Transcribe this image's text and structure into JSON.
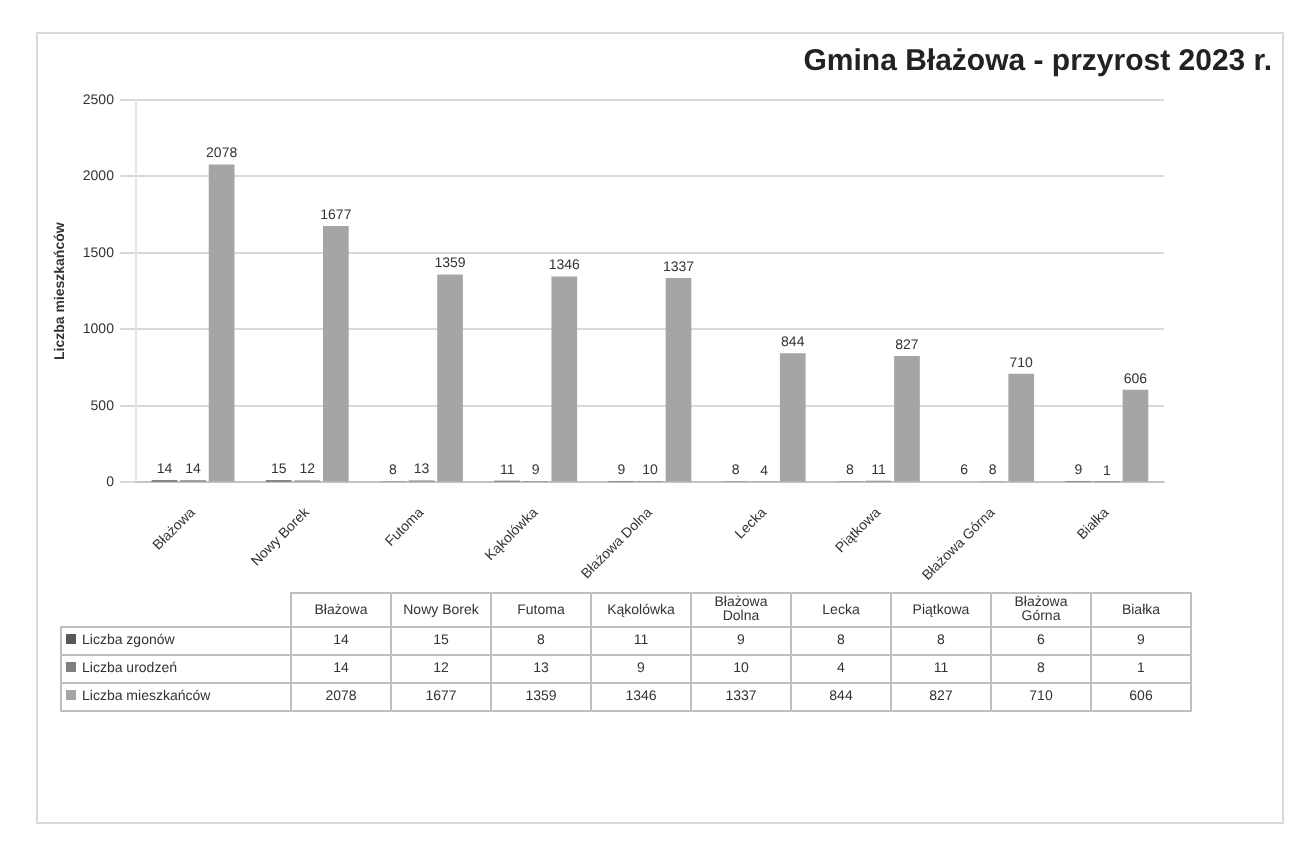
{
  "chart_data": [
    {
      "type": "bar",
      "title": "Gmina Błażowa - przyrost 2023 r.",
      "ylabel": "Liczba mieszkańców",
      "categories": [
        "Błażowa",
        "Nowy Borek",
        "Futoma",
        "Kąkolówka",
        "Błażowa Dolna",
        "Lecka",
        "Piątkowa",
        "Błażowa Górna",
        "Białka"
      ],
      "series": [
        {
          "color": "#595959",
          "values": [
            14,
            15,
            8,
            11,
            9,
            8,
            8,
            6,
            9
          ]
        },
        {
          "color": "#7f7f7f",
          "values": [
            14,
            12,
            13,
            9,
            10,
            4,
            11,
            8,
            1
          ]
        },
        {
          "color": "#a5a5a5",
          "values": [
            2078,
            1677,
            1359,
            1346,
            1337,
            844,
            827,
            710,
            606
          ]
        }
      ],
      "ylim": [
        0,
        2500
      ],
      "yticks": [
        0,
        500,
        1000,
        1500,
        2000,
        2500
      ],
      "grid": "y",
      "data_labels": true
    },
    {
      "type": "other",
      "categories": [
        "Błażowa",
        "Nowy Borek",
        "Futoma",
        "Kąkolówka",
        "Błażowa Dolna",
        "Lecka",
        "Piątkowa",
        "Błażowa Górna",
        "Białka"
      ],
      "series": [
        {
          "name": "Liczba zgonów",
          "color": "#595959",
          "values": [
            14,
            15,
            8,
            11,
            9,
            8,
            8,
            6,
            9
          ]
        },
        {
          "name": "Liczba urodzeń",
          "color": "#7f7f7f",
          "values": [
            14,
            12,
            13,
            9,
            10,
            4,
            11,
            8,
            1
          ]
        },
        {
          "name": "Liczba mieszkańców",
          "color": "#a5a5a5",
          "values": [
            2078,
            1677,
            1359,
            1346,
            1337,
            844,
            827,
            710,
            606
          ]
        }
      ],
      "legend": "left",
      "data_labels": true
    }
  ]
}
